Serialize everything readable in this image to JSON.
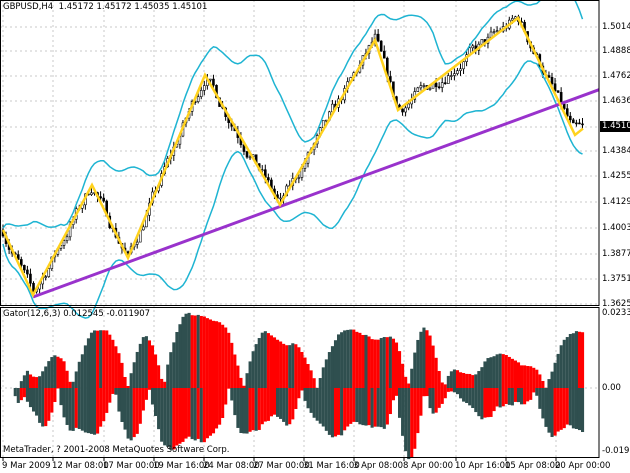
{
  "header": {
    "symbol": "GBPUSD,H4",
    "open": "1.45172",
    "high": "1.45172",
    "low": "1.45035",
    "close": "1.45101"
  },
  "indicator": {
    "label": "Gator(12,6,3) 0.012545 -0.011907",
    "scale_top": "0.023383",
    "scale_zero": "0.00",
    "scale_bottom": "-0.01979",
    "up_color_increase": "#2F4F4F",
    "color_decrease": "#FF0000"
  },
  "copyright": "MetaTrader, ? 2001-2008 MetaQuotes Software Corp.",
  "price_axis": [
    "1.50146",
    "1.48885",
    "1.47625",
    "1.46365",
    "1.43846",
    "1.42550",
    "1.41290",
    "1.40030",
    "1.38770",
    "1.37510",
    "1.36250"
  ],
  "last_price": "1.45101",
  "time_axis": [
    "9 Mar 2009",
    "12 Mar 08:00",
    "17 Mar 00:00",
    "19 Mar 16:00",
    "24 Mar 08:00",
    "27 Mar 00:00",
    "31 Mar 16:00",
    "3 Apr 08:00",
    "8 Apr 00:00",
    "10 Apr 16:00",
    "15 Apr 08:00",
    "20 Apr 00:00"
  ],
  "chart_data": {
    "type": "candlestick",
    "symbol": "GBPUSD",
    "timeframe": "H4",
    "ylim": [
      1.3625,
      1.514
    ],
    "zigzag": [
      {
        "time": "9 Mar 00:00",
        "price": 1.3996
      },
      {
        "time": "10 Mar 16:00",
        "price": 1.367
      },
      {
        "time": "16 Mar 08:00",
        "price": 1.4222
      },
      {
        "time": "18 Mar 08:00",
        "price": 1.3856
      },
      {
        "time": "24 Mar 12:00",
        "price": 1.4774
      },
      {
        "time": "30 Mar 12:00",
        "price": 1.4122
      },
      {
        "time": "6 Apr 12:00",
        "price": 1.4949
      },
      {
        "time": "6 Apr 20:00",
        "price": 1.4598
      },
      {
        "time": "15 Apr 20:00",
        "price": 1.506
      },
      {
        "time": "21 Apr 00:00",
        "price": 1.4473
      }
    ],
    "trendline": [
      {
        "time": "10 Mar 16:00",
        "price": 1.366
      },
      {
        "time": "21 Apr 08:00",
        "price": 1.47
      }
    ],
    "colors": {
      "zigzag": "#FFD21E",
      "trendline": "#9932CC",
      "bands": "#1EB4D2",
      "candles": "#000000"
    }
  }
}
